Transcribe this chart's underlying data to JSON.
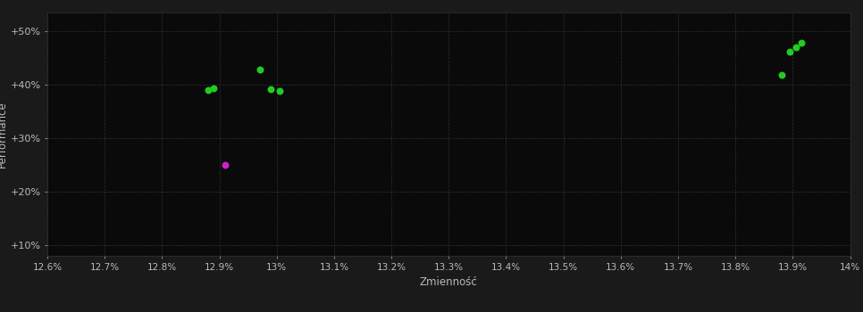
{
  "background_color": "#1a1a1a",
  "plot_bg_color": "#0a0a0a",
  "grid_color": "#3a3a3a",
  "text_color": "#bbbbbb",
  "xlabel": "Zmienność",
  "ylabel": "Performance",
  "xlim": [
    0.126,
    0.14
  ],
  "ylim": [
    0.08,
    0.535
  ],
  "xticks": [
    0.126,
    0.127,
    0.128,
    0.129,
    0.13,
    0.131,
    0.132,
    0.133,
    0.134,
    0.135,
    0.136,
    0.137,
    0.138,
    0.139,
    0.14
  ],
  "yticks": [
    0.1,
    0.2,
    0.3,
    0.4,
    0.5
  ],
  "ytick_labels": [
    "+10%",
    "+20%",
    "+30%",
    "+40%",
    "+50%"
  ],
  "green_points": [
    [
      0.1288,
      0.39
    ],
    [
      0.1289,
      0.394
    ],
    [
      0.1297,
      0.428
    ],
    [
      0.1299,
      0.391
    ],
    [
      0.13005,
      0.389
    ],
    [
      0.13895,
      0.462
    ],
    [
      0.13905,
      0.47
    ],
    [
      0.13915,
      0.478
    ],
    [
      0.1388,
      0.418
    ]
  ],
  "magenta_points": [
    [
      0.1291,
      0.25
    ]
  ],
  "point_size": 22,
  "green_color": "#22cc22",
  "magenta_color": "#cc22cc"
}
